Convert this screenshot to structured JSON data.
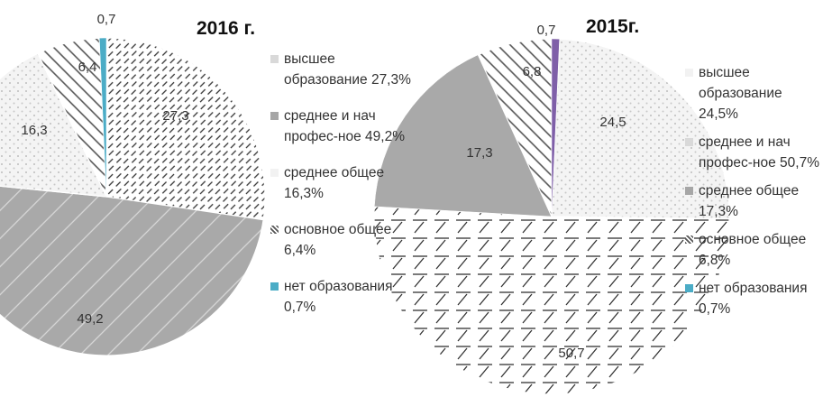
{
  "chart_data": [
    {
      "type": "pie",
      "title": "2016 г.",
      "slices": [
        {
          "label": "высшее\nобразование 27,3%",
          "value": 27.3,
          "data_label": "27,3",
          "color": "#ffffff",
          "pattern": "diag-dashed"
        },
        {
          "label": "среднее и нач\nпрофес-ное 49,2%",
          "value": 49.2,
          "data_label": "49,2",
          "color": "#a9a9a9",
          "pattern": "diag-light"
        },
        {
          "label": "среднее общее\n16,3%",
          "value": 16.3,
          "data_label": "16,3",
          "color": "#f3f3f3",
          "pattern": "dots"
        },
        {
          "label": "основное общее\n6,4%",
          "value": 6.4,
          "data_label": "6,4",
          "color": "#ffffff",
          "pattern": "wide-diag"
        },
        {
          "label": "нет образования\n0,7%",
          "value": 0.7,
          "data_label": "0,7",
          "color": "#4bacc6",
          "pattern": "solid"
        }
      ]
    },
    {
      "type": "pie",
      "title": "2015г.",
      "slices": [
        {
          "label": "высшее\nобразование 24,5%",
          "value": 24.5,
          "data_label": "24,5",
          "color": "#f3f3f3",
          "pattern": "dots"
        },
        {
          "label": "среднее и нач\nпрофес-ное 50,7%",
          "value": 50.7,
          "data_label": "50,7",
          "color": "#ffffff",
          "pattern": "dash-grid"
        },
        {
          "label": "среднее общее\n17,3%",
          "value": 17.3,
          "data_label": "17,3",
          "color": "#a9a9a9",
          "pattern": "solid"
        },
        {
          "label": "основное общее\n6,8%",
          "value": 6.8,
          "data_label": "6,8",
          "color": "#ffffff",
          "pattern": "wide-diag"
        },
        {
          "label": "нет образования\n0,7%",
          "value": 0.7,
          "data_label": "0,7",
          "color": "#7f5fa8",
          "pattern": "solid"
        }
      ]
    }
  ]
}
